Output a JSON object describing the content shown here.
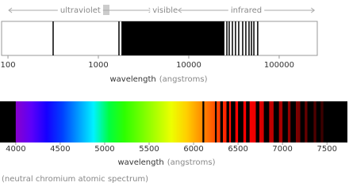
{
  "chart_data": [
    {
      "type": "spectrum-lines",
      "log_x": true,
      "xlim": [
        85,
        264000
      ],
      "xticks": [
        100,
        1000,
        10000,
        100000
      ],
      "regions": [
        {
          "label": "ultraviolet",
          "range": [
            100,
            4000
          ]
        },
        {
          "label": "visible",
          "range": [
            4000,
            7500
          ]
        },
        {
          "label": "infrared",
          "range": [
            7500,
            250000
          ]
        }
      ],
      "lines": [
        316,
        1690,
        26400,
        28000,
        30400,
        32900,
        35700,
        39500,
        42800,
        46400,
        49400,
        52500,
        57900
      ],
      "bands": [
        [
          1800,
          24800
        ]
      ],
      "color": "#000000",
      "xlabel": "wavelength",
      "xunit": "(angstroms)"
    },
    {
      "type": "spectrum-emission",
      "xlim": [
        3823,
        7730
      ],
      "xticks": [
        4000,
        4500,
        5000,
        5500,
        6000,
        6500,
        7000,
        7500
      ],
      "bands": [
        [
          4000,
          6100
        ],
        [
          6120,
          6240
        ],
        [
          6260,
          6300
        ],
        [
          6330,
          6370
        ],
        [
          6400,
          6420
        ],
        [
          6470,
          6500
        ],
        [
          6560,
          6590
        ],
        [
          6630,
          6700
        ],
        [
          6740,
          6790
        ],
        [
          6850,
          6900
        ],
        [
          6960,
          7000
        ],
        [
          7060,
          7090
        ],
        [
          7150,
          7200
        ],
        [
          7250,
          7280
        ],
        [
          7350,
          7380
        ],
        [
          7430,
          7460
        ]
      ],
      "xlabel": "wavelength",
      "xunit": "(angstroms)"
    }
  ],
  "caption": "(neutral chromium atomic spectrum)"
}
